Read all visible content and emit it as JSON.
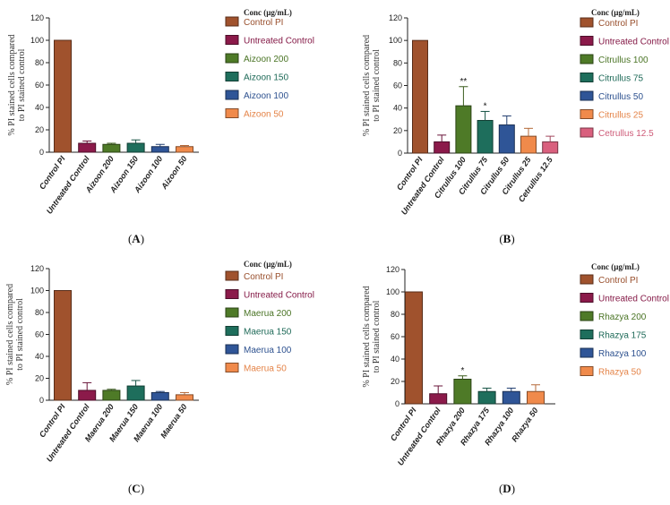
{
  "colors": {
    "control_pi": "#A0522D",
    "untreated": "#8B1A4A",
    "conc_200": "#4E7A27",
    "conc_150": "#1E6E5C",
    "conc_100": "#2F5597",
    "conc_50": "#F08A4B",
    "conc_12_5": "#D9607E"
  },
  "legend_title": "Conc (µg/mL)",
  "chart_data": [
    {
      "type": "bar",
      "panel_label": "A",
      "ylabel_line1": "% PI stained cells compared",
      "ylabel_line2": "to PI stained control",
      "ylim": [
        0,
        120
      ],
      "yticks": [
        "0",
        "20",
        "40",
        "60",
        "80",
        "100",
        "120"
      ],
      "categories": [
        "Control PI",
        "Untreated Control",
        "Aizoon 200",
        "Aizoon 150",
        "Aizoon 100",
        "Aizoon 50"
      ],
      "values": [
        100,
        8,
        7,
        8,
        5,
        5
      ],
      "errors": [
        0,
        2,
        1,
        3,
        2,
        1
      ],
      "significance": [
        "",
        "",
        "",
        "",
        "",
        ""
      ],
      "bar_colors": [
        "#A0522D",
        "#8B1A4A",
        "#4E7A27",
        "#1E6E5C",
        "#2F5597",
        "#F08A4B"
      ],
      "legend": [
        "Control PI",
        "Untreated Control",
        "Aizoon 200",
        "Aizoon 150",
        "Aizoon 100",
        "Aizoon 50"
      ]
    },
    {
      "type": "bar",
      "panel_label": "B",
      "ylabel_line1": "% PI stained cells compared",
      "ylabel_line2": "to PI stained control",
      "ylim": [
        0,
        120
      ],
      "yticks": [
        "0",
        "20",
        "40",
        "60",
        "80",
        "100",
        "120"
      ],
      "categories": [
        "Control PI",
        "Untreated Control",
        "Citrullus 100",
        "Citrullus 75",
        "Citrullus 50",
        "Citrullus 25",
        "Cetrullus 12.5"
      ],
      "values": [
        100,
        10,
        42,
        29,
        25,
        15,
        10
      ],
      "errors": [
        0,
        6,
        17,
        8,
        8,
        7,
        5
      ],
      "significance": [
        "",
        "",
        "**",
        "*",
        "",
        "",
        ""
      ],
      "bar_colors": [
        "#A0522D",
        "#8B1A4A",
        "#4E7A27",
        "#1E6E5C",
        "#2F5597",
        "#F08A4B",
        "#D9607E"
      ],
      "legend": [
        "Control PI",
        "Untreated Control",
        "Citrullus 100",
        "Citrullus 75",
        "Citrullus 50",
        "Citrullus 25",
        "Cetrullus 12.5"
      ]
    },
    {
      "type": "bar",
      "panel_label": "C",
      "ylabel_line1": "% PI stained cells compared",
      "ylabel_line2": "to PI stained control",
      "ylim": [
        0,
        120
      ],
      "yticks": [
        "0",
        "20",
        "40",
        "60",
        "80",
        "100",
        "120"
      ],
      "categories": [
        "Control PI",
        "Untreated Control",
        "Maerua 200",
        "Maerua 150",
        "Maerua 100",
        "Maerua 50"
      ],
      "values": [
        100,
        9,
        9,
        13,
        7,
        5
      ],
      "errors": [
        0,
        7,
        1,
        5,
        1,
        2
      ],
      "significance": [
        "",
        "",
        "",
        "",
        "",
        ""
      ],
      "bar_colors": [
        "#A0522D",
        "#8B1A4A",
        "#4E7A27",
        "#1E6E5C",
        "#2F5597",
        "#F08A4B"
      ],
      "legend": [
        "Control PI",
        "Untreated Control",
        "Maerua 200",
        "Maerua 150",
        "Maerua 100",
        "Maerua 50"
      ]
    },
    {
      "type": "bar",
      "panel_label": "D",
      "ylabel_line1": "% PI stained cells compared",
      "ylabel_line2": "to PI stained control",
      "ylim": [
        0,
        120
      ],
      "yticks": [
        "0",
        "20",
        "40",
        "60",
        "80",
        "100",
        "120"
      ],
      "categories": [
        "Control PI",
        "Untreated Control",
        "Rhazya 200",
        "Rhazya 175",
        "Rhazya 100",
        "Rhazya 50"
      ],
      "values": [
        100,
        9,
        22,
        11,
        11,
        11
      ],
      "errors": [
        0,
        7,
        3,
        3,
        3,
        6
      ],
      "significance": [
        "",
        "",
        "*",
        "",
        "",
        ""
      ],
      "bar_colors": [
        "#A0522D",
        "#8B1A4A",
        "#4E7A27",
        "#1E6E5C",
        "#2F5597",
        "#F08A4B"
      ],
      "legend": [
        "Control PI",
        "Untreated Control",
        "Rhazya 200",
        "Rhazya 175",
        "Rhazya 100",
        "Rhazya 50"
      ]
    }
  ]
}
